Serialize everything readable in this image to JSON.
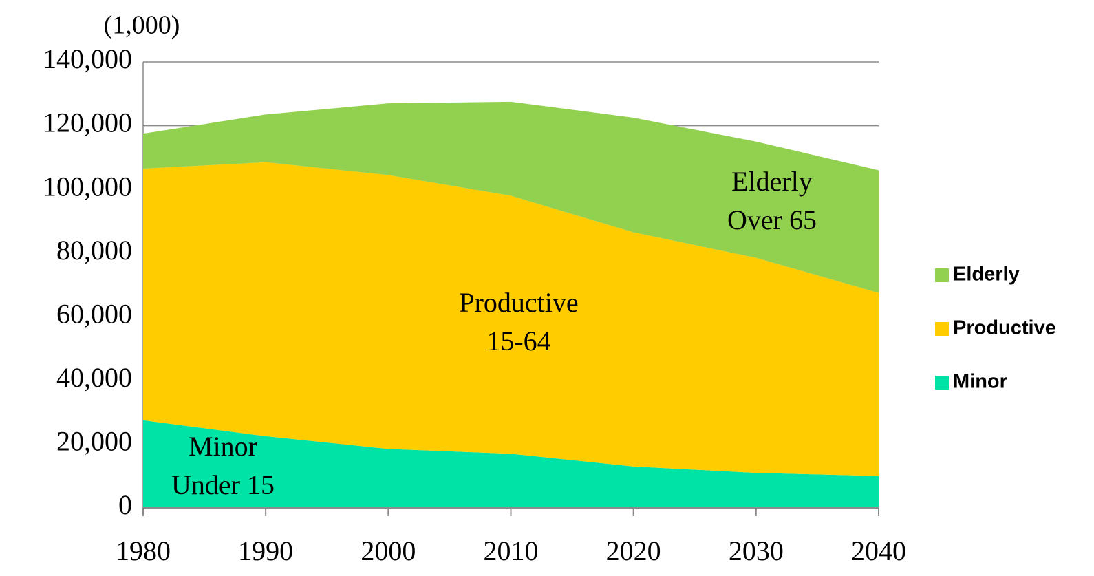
{
  "chart_data": {
    "type": "area",
    "ylabel": "(1,000)",
    "x": [
      1980,
      1990,
      2000,
      2010,
      2020,
      2030,
      2040
    ],
    "xlim": [
      1980,
      2040
    ],
    "xticks": [
      1980,
      1990,
      2000,
      2010,
      2020,
      2030,
      2040
    ],
    "ylim": [
      0,
      140000
    ],
    "yticks": [
      0,
      {
        "value": 20000,
        "label": "20,000"
      },
      {
        "value": 40000,
        "label": "40,000"
      },
      {
        "value": 60000,
        "label": "60,000"
      },
      {
        "value": 80000,
        "label": "80,000"
      },
      {
        "value": 100000,
        "label": "100,000"
      },
      {
        "value": 120000,
        "label": "120,000"
      },
      {
        "value": 140000,
        "label": "140,000"
      }
    ],
    "grid": true,
    "stacked": true,
    "legend": "right",
    "series": [
      {
        "name": "Minor",
        "color": "#00e3a6",
        "values": [
          27500,
          22500,
          18500,
          17000,
          13000,
          11000,
          10000
        ]
      },
      {
        "name": "Productive",
        "color": "#ffcc00",
        "values": [
          79000,
          86000,
          86000,
          81000,
          73500,
          67500,
          57500
        ]
      },
      {
        "name": "Elderly",
        "color": "#92d050",
        "values": [
          11000,
          15000,
          22500,
          29500,
          36000,
          36500,
          38500
        ]
      }
    ],
    "annotations": [
      [
        "Minor",
        "Under 15"
      ],
      [
        "Productive",
        "15-64"
      ],
      [
        "Elderly",
        "Over 65"
      ]
    ]
  }
}
